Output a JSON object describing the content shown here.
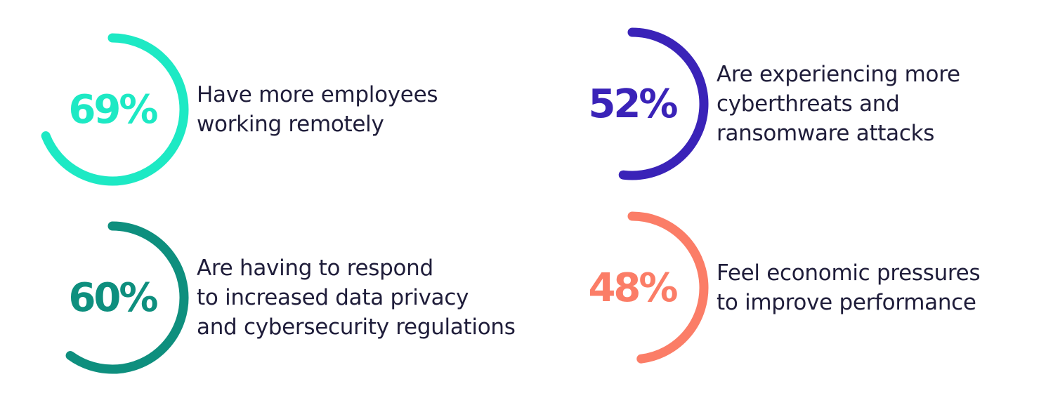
{
  "chart_data": {
    "type": "radial-stat",
    "stats": [
      {
        "value": 69,
        "label": "69%",
        "color": "#1de9c4",
        "lines": [
          "Have more employees",
          "working remotely"
        ]
      },
      {
        "value": 52,
        "label": "52%",
        "color": "#3a23b8",
        "lines": [
          "Are experiencing more",
          "cyberthreats and",
          "ransomware attacks"
        ]
      },
      {
        "value": 60,
        "label": "60%",
        "color": "#0e8f7e",
        "lines": [
          "Are having to respond",
          "to increased data privacy",
          "and cybersecurity regulations"
        ]
      },
      {
        "value": 48,
        "label": "48%",
        "color": "#fb7d67",
        "lines": [
          "Feel economic pressures",
          "to improve performance"
        ]
      }
    ]
  }
}
